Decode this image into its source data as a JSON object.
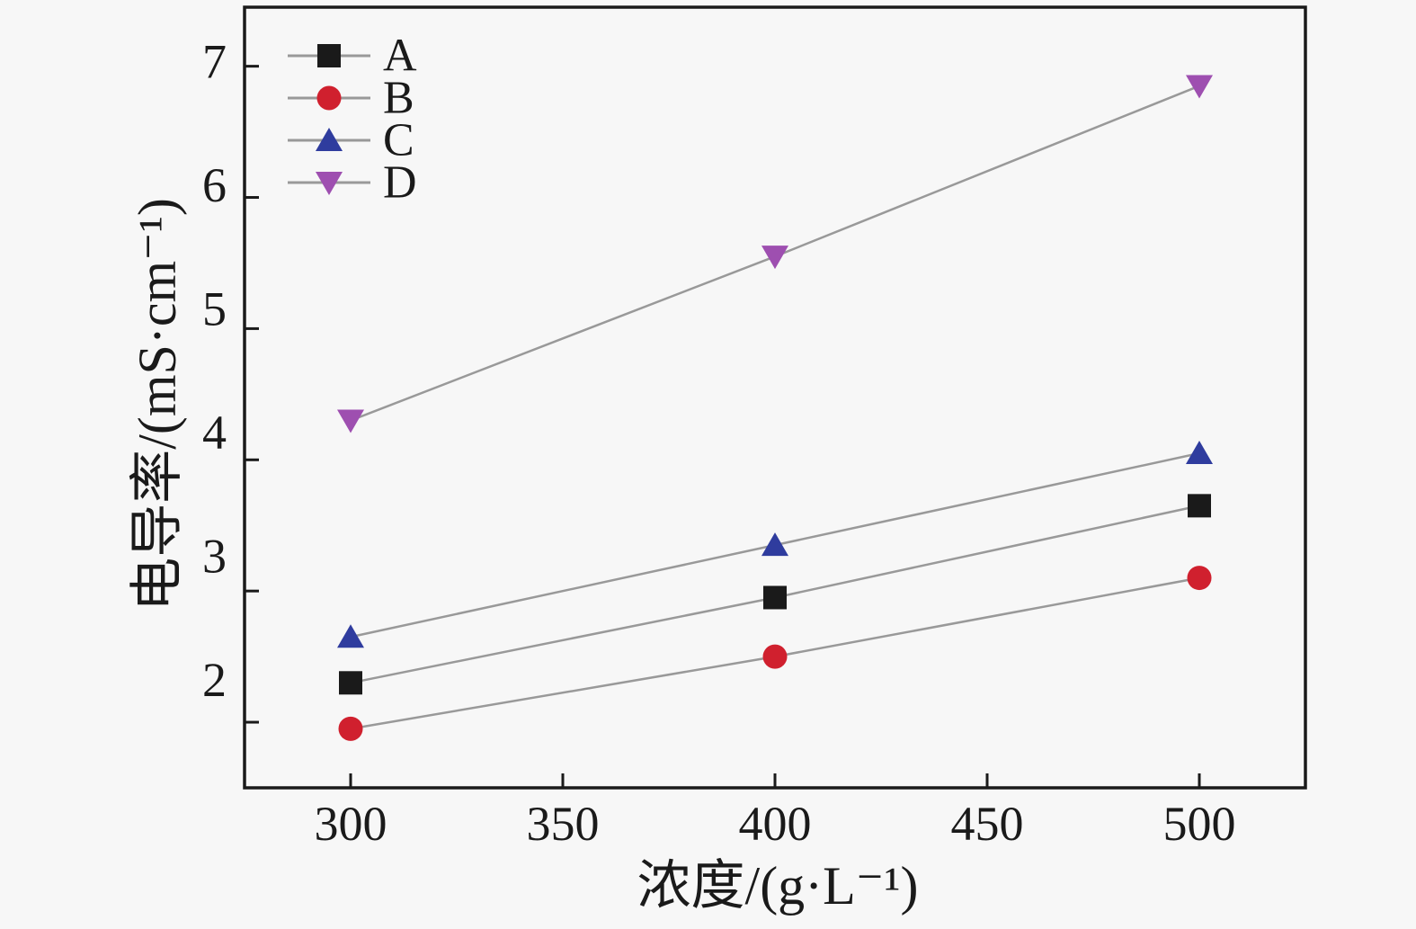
{
  "figure": {
    "background_color": "#f7f7f7",
    "frame_color": "#1a1a1a",
    "connector_line_color": "#999999"
  },
  "chart_data": {
    "type": "line",
    "title": "",
    "xlabel": "浓度/(g·L⁻¹)",
    "ylabel": "电导率/(mS·cm⁻¹)",
    "x": [
      300,
      400,
      500
    ],
    "series": [
      {
        "name": "A",
        "marker": "square",
        "color": "#1a1a1a",
        "values": [
          2.3,
          2.95,
          3.65
        ]
      },
      {
        "name": "B",
        "marker": "circle",
        "color": "#d0202e",
        "values": [
          1.95,
          2.5,
          3.1
        ]
      },
      {
        "name": "C",
        "marker": "triangle-up",
        "color": "#2f3c9e",
        "values": [
          2.65,
          3.35,
          4.05
        ]
      },
      {
        "name": "D",
        "marker": "triangle-down",
        "color": "#9e4fb0",
        "values": [
          4.3,
          5.55,
          6.85
        ]
      }
    ],
    "x_ticks": [
      "300",
      "350",
      "400",
      "450",
      "500"
    ],
    "x_tick_values": [
      300,
      350,
      400,
      450,
      500
    ],
    "y_ticks": [
      "2",
      "3",
      "4",
      "5",
      "6",
      "7"
    ],
    "y_tick_values": [
      2,
      3,
      4,
      5,
      6,
      7
    ],
    "xlim": [
      275,
      525
    ],
    "ylim": [
      1.5,
      7.45
    ],
    "grid": false,
    "legend_position": "top-left",
    "legend_entries": [
      "A",
      "B",
      "C",
      "D"
    ]
  }
}
